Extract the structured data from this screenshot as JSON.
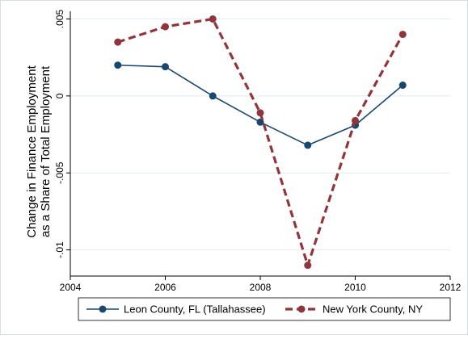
{
  "chart_data": {
    "type": "line",
    "title": "",
    "xlabel": "",
    "ylabel": "Change in Finance Employment\nas a Share of Total Employment",
    "xlim": [
      2004,
      2012
    ],
    "ylim": [
      -0.0117,
      0.0055
    ],
    "xticks": [
      2004,
      2006,
      2008,
      2010,
      2012
    ],
    "xtick_labels": [
      "2004",
      "2006",
      "2008",
      "2010",
      "2012"
    ],
    "yticks": [
      0.005,
      0,
      -0.005,
      -0.01
    ],
    "ytick_labels": [
      ".005",
      "0",
      "-.005",
      "-.01"
    ],
    "grid": true,
    "legend_position": "bottom",
    "series": [
      {
        "name": "Leon County, FL (Tallahassee)",
        "color": "#1a476f",
        "style": "solid",
        "x": [
          2005,
          2006,
          2007,
          2008,
          2009,
          2010,
          2011
        ],
        "y": [
          0.002,
          0.0019,
          0.0,
          -0.0017,
          -0.0032,
          -0.0019,
          0.0007
        ]
      },
      {
        "name": "New York County, NY",
        "color": "#90353b",
        "style": "dash",
        "x": [
          2005,
          2006,
          2007,
          2008,
          2009,
          2010,
          2011
        ],
        "y": [
          0.0035,
          0.0045,
          0.005,
          -0.0011,
          -0.011,
          -0.0016,
          0.004
        ]
      }
    ]
  }
}
